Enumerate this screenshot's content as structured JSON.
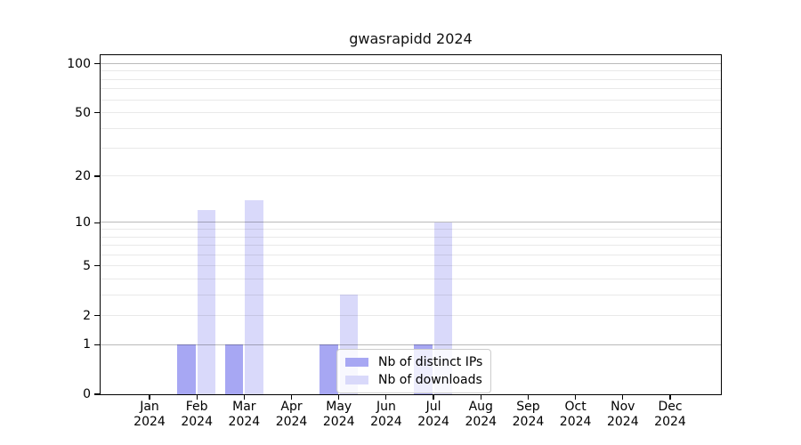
{
  "chart_data": {
    "type": "bar",
    "title": "gwasrapidd 2024",
    "categories": [
      {
        "month": "Jan",
        "year": "2024"
      },
      {
        "month": "Feb",
        "year": "2024"
      },
      {
        "month": "Mar",
        "year": "2024"
      },
      {
        "month": "Apr",
        "year": "2024"
      },
      {
        "month": "May",
        "year": "2024"
      },
      {
        "month": "Jun",
        "year": "2024"
      },
      {
        "month": "Jul",
        "year": "2024"
      },
      {
        "month": "Aug",
        "year": "2024"
      },
      {
        "month": "Sep",
        "year": "2024"
      },
      {
        "month": "Oct",
        "year": "2024"
      },
      {
        "month": "Nov",
        "year": "2024"
      },
      {
        "month": "Dec",
        "year": "2024"
      }
    ],
    "series": [
      {
        "name": "Nb of distinct IPs",
        "color": "#a7a7f3",
        "values": [
          0,
          1,
          1,
          0,
          1,
          0,
          1,
          0,
          0,
          0,
          0,
          0
        ]
      },
      {
        "name": "Nb of downloads",
        "color": "#d9d9fa",
        "values": [
          0,
          12,
          14,
          0,
          3,
          0,
          10,
          0,
          0,
          0,
          0,
          0
        ]
      }
    ],
    "xlabel": "",
    "ylabel": "",
    "yscale": "log1p",
    "ylim": [
      0,
      113
    ],
    "yticks": [
      0,
      1,
      2,
      5,
      10,
      20,
      50,
      100
    ],
    "grid": true,
    "grid_light_values": [
      2,
      3,
      4,
      5,
      6,
      7,
      8,
      9,
      20,
      30,
      40,
      50,
      60,
      70,
      80,
      90
    ],
    "grid_dark_values": [
      1,
      10,
      100
    ],
    "grid_color_minor": "#ebebeb",
    "grid_color_major": "#b9b9b9",
    "legend_position": "lower center"
  }
}
